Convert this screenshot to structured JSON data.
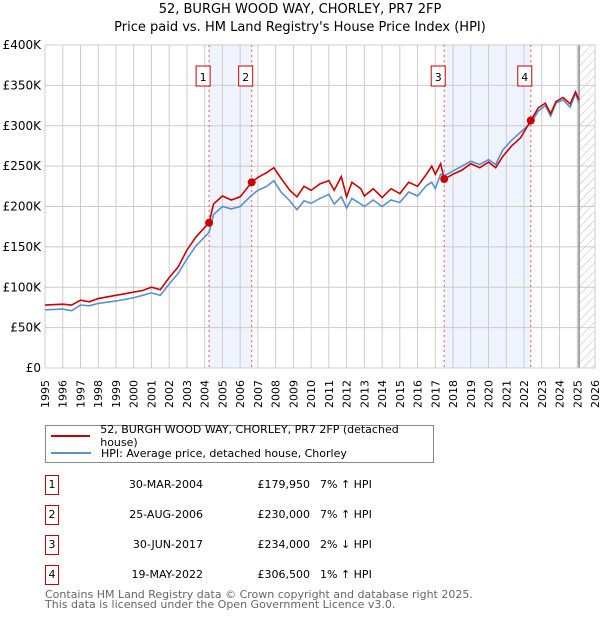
{
  "chart_data": {
    "type": "line",
    "title": "52, BURGH WOOD WAY, CHORLEY, PR7 2FP",
    "subtitle": "Price paid vs. HM Land Registry's House Price Index (HPI)",
    "xlim": [
      1995,
      2026
    ],
    "ylim": [
      0,
      400000
    ],
    "yticks": [
      0,
      50000,
      100000,
      150000,
      200000,
      250000,
      300000,
      350000,
      400000
    ],
    "ytick_labels": [
      "£0",
      "£50K",
      "£100K",
      "£150K",
      "£200K",
      "£250K",
      "£300K",
      "£350K",
      "£400K"
    ],
    "xticks": [
      1995,
      1996,
      1997,
      1998,
      1999,
      2000,
      2001,
      2002,
      2003,
      2004,
      2005,
      2006,
      2007,
      2008,
      2009,
      2010,
      2011,
      2012,
      2013,
      2014,
      2015,
      2016,
      2017,
      2018,
      2019,
      2020,
      2021,
      2022,
      2023,
      2024,
      2025,
      2026
    ],
    "grid": true,
    "forecast_start": 2025.1,
    "shaded_ranges": [
      [
        2004.25,
        2006.65
      ],
      [
        2017.5,
        2022.38
      ]
    ],
    "series": [
      {
        "name": "52, BURGH WOOD WAY, CHORLEY, PR7 2FP (detached house)",
        "color": "#cc0000",
        "points": [
          [
            1995,
            78
          ],
          [
            1996,
            79
          ],
          [
            1996.5,
            78
          ],
          [
            1997,
            84
          ],
          [
            1997.5,
            82
          ],
          [
            1998,
            86
          ],
          [
            1999,
            90
          ],
          [
            2000,
            94
          ],
          [
            2000.5,
            96
          ],
          [
            2001,
            100
          ],
          [
            2001.5,
            97
          ],
          [
            2002,
            112
          ],
          [
            2002.5,
            125
          ],
          [
            2003,
            146
          ],
          [
            2003.5,
            162
          ],
          [
            2004.25,
            180
          ],
          [
            2004.5,
            203
          ],
          [
            2005,
            213
          ],
          [
            2005.5,
            208
          ],
          [
            2006,
            212
          ],
          [
            2006.65,
            230
          ],
          [
            2007,
            236
          ],
          [
            2007.5,
            242
          ],
          [
            2007.9,
            248
          ],
          [
            2008.3,
            235
          ],
          [
            2008.8,
            220
          ],
          [
            2009.2,
            212
          ],
          [
            2009.6,
            225
          ],
          [
            2010,
            220
          ],
          [
            2010.5,
            228
          ],
          [
            2011,
            232
          ],
          [
            2011.3,
            220
          ],
          [
            2011.7,
            237
          ],
          [
            2012,
            212
          ],
          [
            2012.3,
            230
          ],
          [
            2012.8,
            222
          ],
          [
            2013,
            213
          ],
          [
            2013.5,
            222
          ],
          [
            2014,
            211
          ],
          [
            2014.5,
            222
          ],
          [
            2015,
            216
          ],
          [
            2015.5,
            230
          ],
          [
            2016,
            225
          ],
          [
            2016.5,
            240
          ],
          [
            2016.8,
            250
          ],
          [
            2017,
            240
          ],
          [
            2017.3,
            253
          ],
          [
            2017.5,
            234
          ],
          [
            2018,
            240
          ],
          [
            2018.5,
            245
          ],
          [
            2019,
            253
          ],
          [
            2019.5,
            248
          ],
          [
            2020,
            255
          ],
          [
            2020.4,
            248
          ],
          [
            2020.8,
            262
          ],
          [
            2021.3,
            275
          ],
          [
            2021.8,
            285
          ],
          [
            2022.38,
            306.5
          ],
          [
            2022.8,
            322
          ],
          [
            2023.2,
            328
          ],
          [
            2023.5,
            315
          ],
          [
            2023.8,
            330
          ],
          [
            2024.2,
            335
          ],
          [
            2024.6,
            327
          ],
          [
            2024.9,
            342
          ],
          [
            2025.1,
            332
          ]
        ]
      },
      {
        "name": "HPI: Average price, detached house, Chorley",
        "color": "#5b8fd0",
        "points": [
          [
            1995,
            72
          ],
          [
            1996,
            73
          ],
          [
            1996.5,
            71
          ],
          [
            1997,
            78
          ],
          [
            1997.5,
            77
          ],
          [
            1998,
            80
          ],
          [
            1999,
            83
          ],
          [
            2000,
            87
          ],
          [
            2000.5,
            90
          ],
          [
            2001,
            93
          ],
          [
            2001.5,
            90
          ],
          [
            2002,
            104
          ],
          [
            2002.5,
            117
          ],
          [
            2003,
            135
          ],
          [
            2003.5,
            151
          ],
          [
            2004.25,
            168
          ],
          [
            2004.5,
            190
          ],
          [
            2005,
            200
          ],
          [
            2005.5,
            197
          ],
          [
            2006,
            200
          ],
          [
            2006.65,
            214
          ],
          [
            2007,
            220
          ],
          [
            2007.5,
            225
          ],
          [
            2007.9,
            232
          ],
          [
            2008.3,
            218
          ],
          [
            2008.8,
            207
          ],
          [
            2009.2,
            196
          ],
          [
            2009.6,
            207
          ],
          [
            2010,
            204
          ],
          [
            2010.5,
            210
          ],
          [
            2011,
            215
          ],
          [
            2011.3,
            203
          ],
          [
            2011.7,
            212
          ],
          [
            2012,
            198
          ],
          [
            2012.3,
            210
          ],
          [
            2012.8,
            203
          ],
          [
            2013,
            200
          ],
          [
            2013.5,
            208
          ],
          [
            2014,
            200
          ],
          [
            2014.5,
            208
          ],
          [
            2015,
            205
          ],
          [
            2015.5,
            218
          ],
          [
            2016,
            213
          ],
          [
            2016.5,
            226
          ],
          [
            2016.8,
            230
          ],
          [
            2017,
            222
          ],
          [
            2017.3,
            240
          ],
          [
            2017.5,
            238
          ],
          [
            2018,
            244
          ],
          [
            2018.5,
            250
          ],
          [
            2019,
            256
          ],
          [
            2019.5,
            252
          ],
          [
            2020,
            258
          ],
          [
            2020.4,
            252
          ],
          [
            2020.8,
            270
          ],
          [
            2021.3,
            282
          ],
          [
            2021.8,
            292
          ],
          [
            2022.38,
            303
          ],
          [
            2022.8,
            318
          ],
          [
            2023.2,
            325
          ],
          [
            2023.5,
            312
          ],
          [
            2023.8,
            328
          ],
          [
            2024.2,
            332
          ],
          [
            2024.6,
            323
          ],
          [
            2024.9,
            340
          ],
          [
            2025.1,
            328
          ]
        ]
      }
    ],
    "sales": [
      {
        "label": "1",
        "year": 2004.25,
        "price": 179950
      },
      {
        "label": "2",
        "year": 2006.65,
        "price": 230000
      },
      {
        "label": "3",
        "year": 2017.5,
        "price": 234000
      },
      {
        "label": "4",
        "year": 2022.38,
        "price": 306500
      }
    ]
  },
  "legend": {
    "property": "52, BURGH WOOD WAY, CHORLEY, PR7 2FP (detached house)",
    "hpi": "HPI: Average price, detached house, Chorley"
  },
  "table": [
    {
      "num": "1",
      "date": "30-MAR-2004",
      "price": "£179,950",
      "hpi": "7% ↑ HPI"
    },
    {
      "num": "2",
      "date": "25-AUG-2006",
      "price": "£230,000",
      "hpi": "7% ↑ HPI"
    },
    {
      "num": "3",
      "date": "30-JUN-2017",
      "price": "£234,000",
      "hpi": "2% ↓ HPI"
    },
    {
      "num": "4",
      "date": "19-MAY-2022",
      "price": "£306,500",
      "hpi": "1% ↑ HPI"
    }
  ],
  "footer": {
    "line1": "Contains HM Land Registry data © Crown copyright and database right 2025.",
    "line2": "This data is licensed under the Open Government Licence v3.0."
  }
}
